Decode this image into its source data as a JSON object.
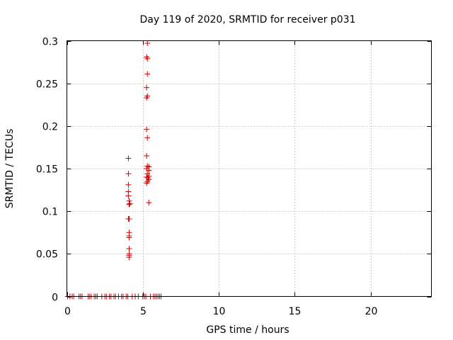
{
  "chart_data": {
    "type": "scatter",
    "title": "Day 119 of 2020, SRMTID for receiver p031",
    "xlabel": "GPS time / hours",
    "ylabel": "SRMTID / TECUs",
    "xlim": [
      0,
      24
    ],
    "ylim": [
      0,
      0.3
    ],
    "xticks": [
      0,
      5,
      10,
      15,
      20
    ],
    "xtick_labels": [
      "0",
      "5",
      "10",
      "15",
      "20"
    ],
    "yticks": [
      0,
      0.05,
      0.1,
      0.15,
      0.2,
      0.25,
      0.3
    ],
    "ytick_labels": [
      "0",
      "0.05",
      "0.1",
      "0.15",
      "0.2",
      "0.25",
      "0.3"
    ],
    "grid": true,
    "marker": "plus",
    "color": "#cc0000",
    "points": [
      {
        "x": 0.05,
        "y": 0
      },
      {
        "x": 0.2,
        "y": 0
      },
      {
        "x": 0.35,
        "y": 0
      },
      {
        "x": 0.45,
        "y": 0
      },
      {
        "x": 0.8,
        "y": 0
      },
      {
        "x": 0.9,
        "y": 0
      },
      {
        "x": 1.0,
        "y": 0
      },
      {
        "x": 1.4,
        "y": 0
      },
      {
        "x": 1.5,
        "y": 0
      },
      {
        "x": 1.6,
        "y": 0
      },
      {
        "x": 1.8,
        "y": 0
      },
      {
        "x": 1.9,
        "y": 0
      },
      {
        "x": 2.0,
        "y": 0
      },
      {
        "x": 2.3,
        "y": 0
      },
      {
        "x": 2.5,
        "y": 0
      },
      {
        "x": 2.6,
        "y": 0
      },
      {
        "x": 2.8,
        "y": 0
      },
      {
        "x": 2.9,
        "y": 0
      },
      {
        "x": 3.1,
        "y": 0
      },
      {
        "x": 3.2,
        "y": 0
      },
      {
        "x": 3.4,
        "y": 0
      },
      {
        "x": 3.6,
        "y": 0
      },
      {
        "x": 3.7,
        "y": 0
      },
      {
        "x": 3.9,
        "y": 0
      },
      {
        "x": 4.0,
        "y": 0
      },
      {
        "x": 4.3,
        "y": 0
      },
      {
        "x": 4.5,
        "y": 0
      },
      {
        "x": 4.7,
        "y": 0
      },
      {
        "x": 5.0,
        "y": 0
      },
      {
        "x": 5.1,
        "y": 0
      },
      {
        "x": 5.2,
        "y": 0
      },
      {
        "x": 5.5,
        "y": 0
      },
      {
        "x": 5.7,
        "y": 0
      },
      {
        "x": 5.8,
        "y": 0
      },
      {
        "x": 5.9,
        "y": 0
      },
      {
        "x": 6.0,
        "y": 0
      },
      {
        "x": 6.1,
        "y": 0
      },
      {
        "x": 6.2,
        "y": 0
      },
      {
        "x": 4.05,
        "y": 0.162
      },
      {
        "x": 4.05,
        "y": 0.144
      },
      {
        "x": 4.05,
        "y": 0.131
      },
      {
        "x": 4.05,
        "y": 0.123
      },
      {
        "x": 4.05,
        "y": 0.118
      },
      {
        "x": 4.1,
        "y": 0.112
      },
      {
        "x": 4.15,
        "y": 0.109
      },
      {
        "x": 4.1,
        "y": 0.108
      },
      {
        "x": 4.05,
        "y": 0.091
      },
      {
        "x": 4.1,
        "y": 0.091
      },
      {
        "x": 4.1,
        "y": 0.075
      },
      {
        "x": 4.1,
        "y": 0.071
      },
      {
        "x": 4.1,
        "y": 0.069
      },
      {
        "x": 4.1,
        "y": 0.056
      },
      {
        "x": 4.1,
        "y": 0.05
      },
      {
        "x": 4.1,
        "y": 0.048
      },
      {
        "x": 4.1,
        "y": 0.046
      },
      {
        "x": 5.3,
        "y": 0.297
      },
      {
        "x": 5.25,
        "y": 0.281
      },
      {
        "x": 5.3,
        "y": 0.279
      },
      {
        "x": 5.3,
        "y": 0.261
      },
      {
        "x": 5.25,
        "y": 0.245
      },
      {
        "x": 5.3,
        "y": 0.235
      },
      {
        "x": 5.25,
        "y": 0.233
      },
      {
        "x": 5.25,
        "y": 0.196
      },
      {
        "x": 5.3,
        "y": 0.186
      },
      {
        "x": 5.25,
        "y": 0.165
      },
      {
        "x": 5.3,
        "y": 0.153
      },
      {
        "x": 5.4,
        "y": 0.152
      },
      {
        "x": 5.25,
        "y": 0.15
      },
      {
        "x": 5.4,
        "y": 0.148
      },
      {
        "x": 5.3,
        "y": 0.144
      },
      {
        "x": 5.4,
        "y": 0.141
      },
      {
        "x": 5.25,
        "y": 0.14
      },
      {
        "x": 5.35,
        "y": 0.139
      },
      {
        "x": 5.4,
        "y": 0.137
      },
      {
        "x": 5.3,
        "y": 0.135
      },
      {
        "x": 5.25,
        "y": 0.133
      },
      {
        "x": 5.4,
        "y": 0.11
      }
    ]
  }
}
